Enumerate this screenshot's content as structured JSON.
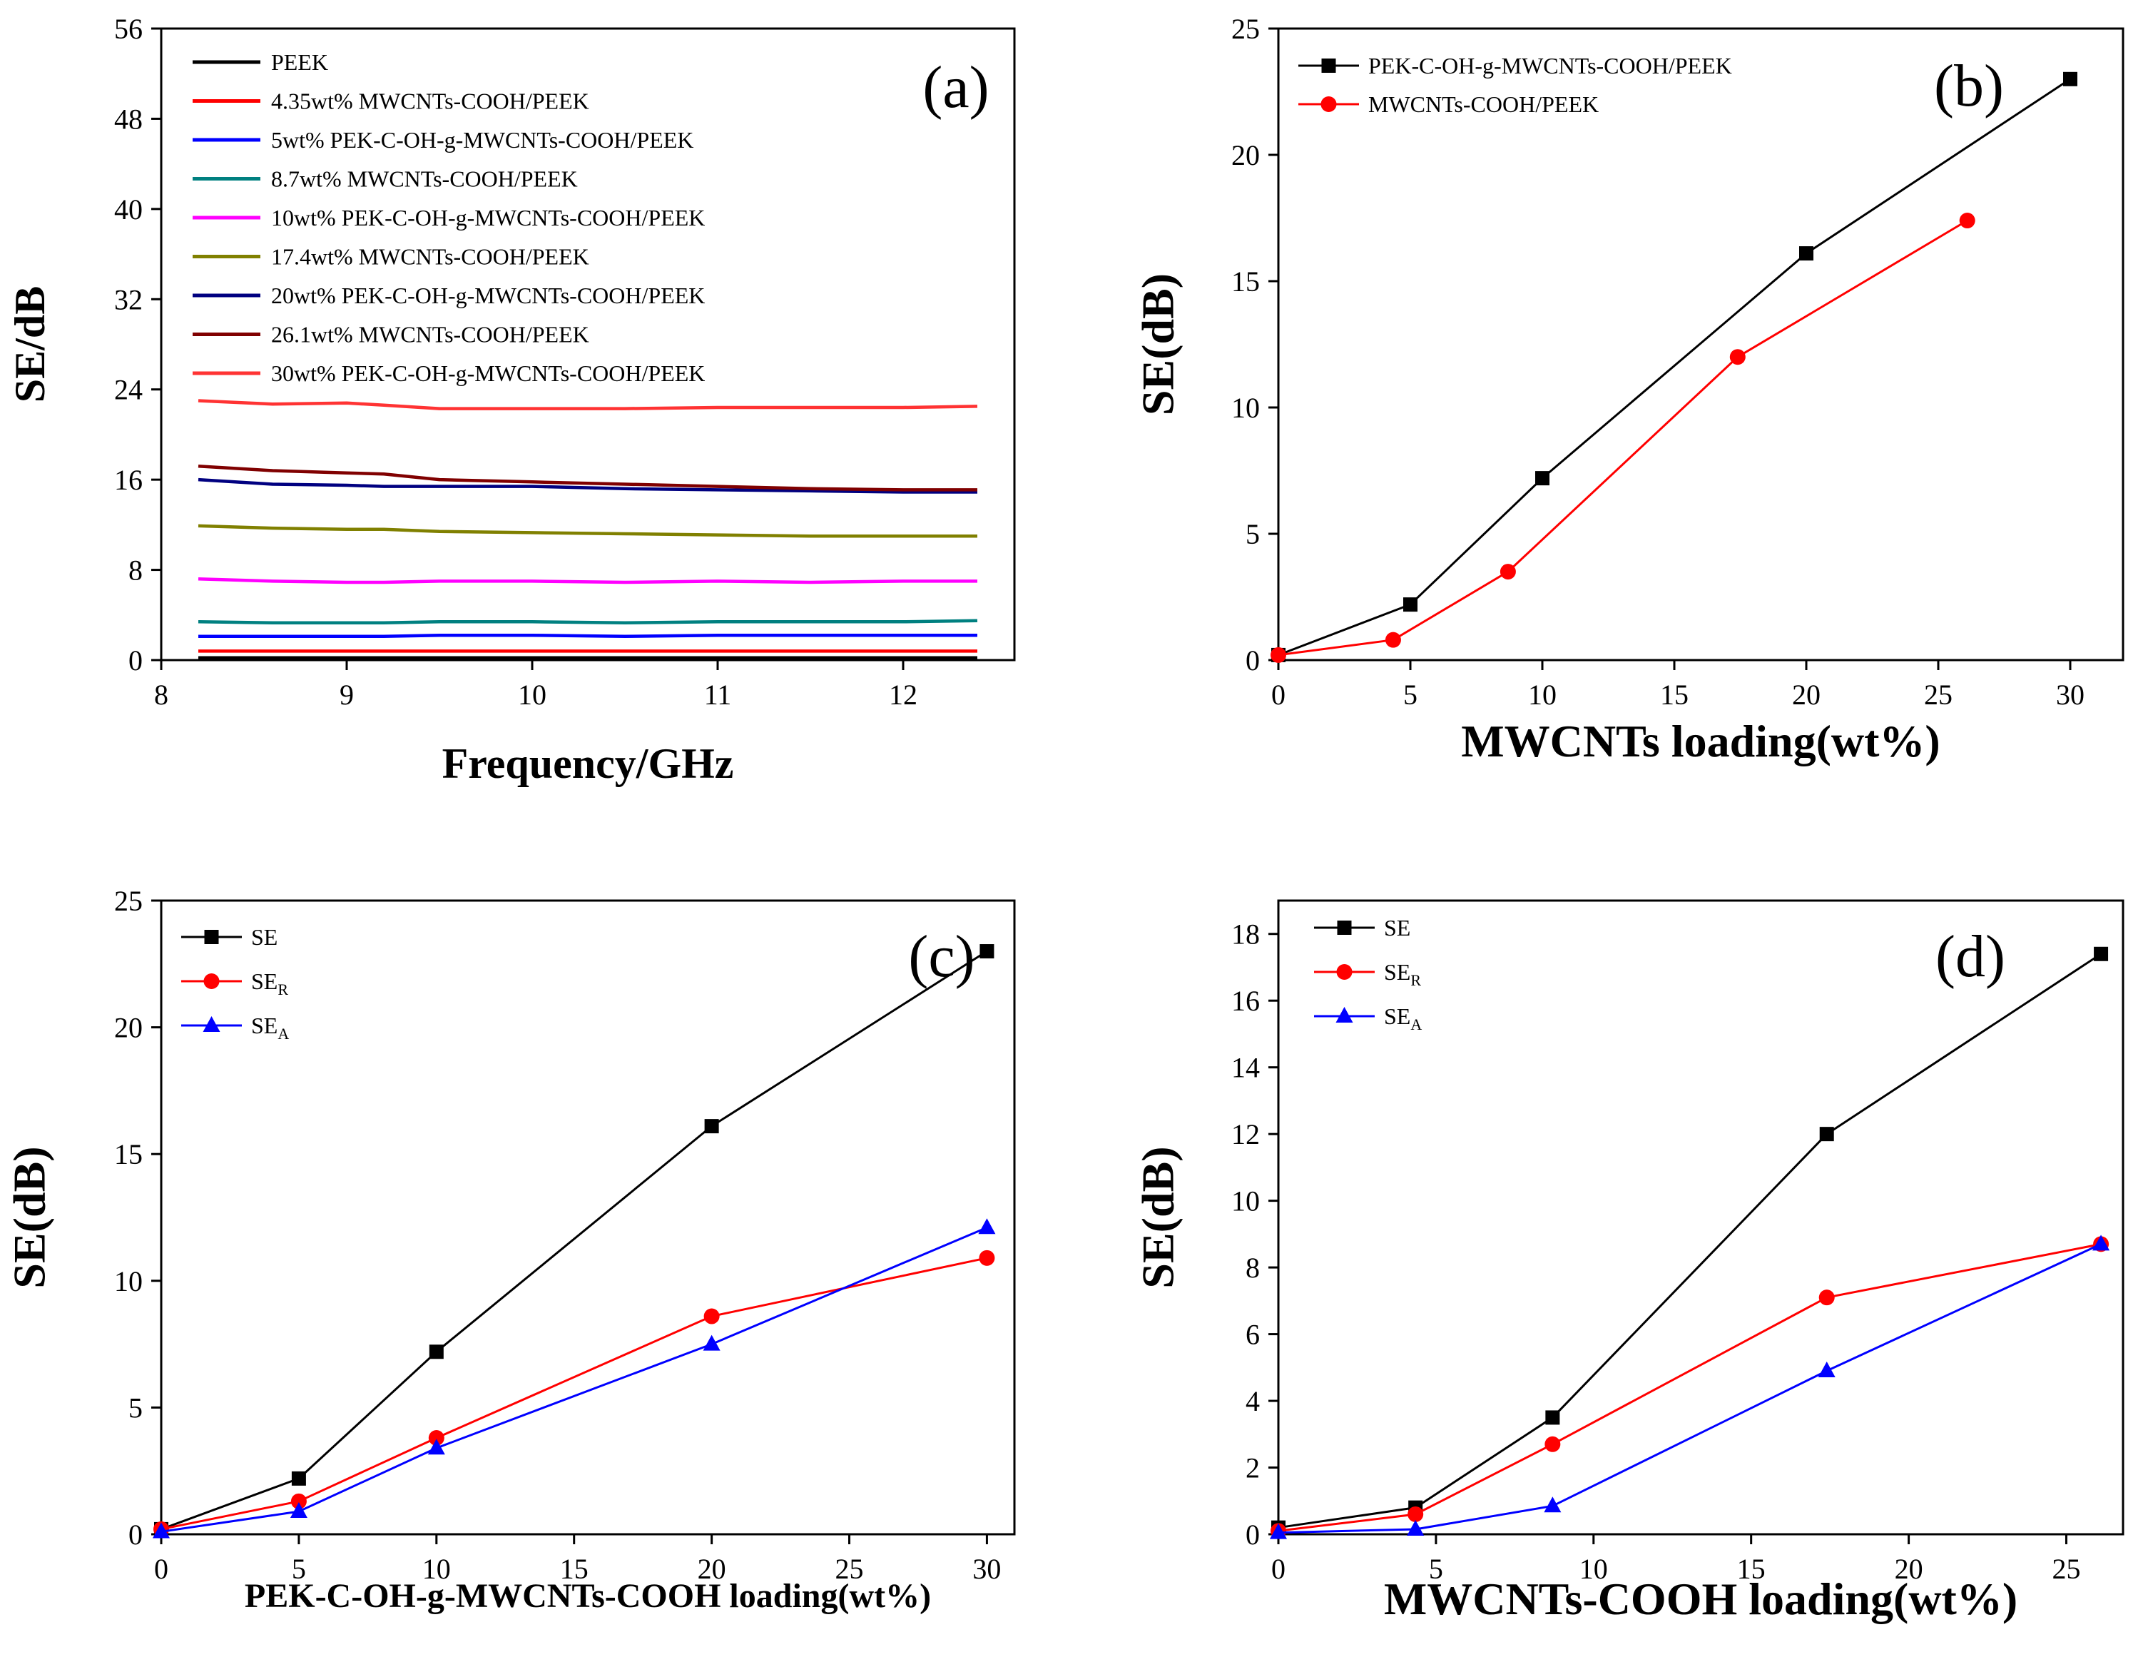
{
  "chart_data": [
    {
      "id": "a",
      "type": "line",
      "panel_label": "(a)",
      "title": "",
      "xlabel": "Frequency/GHz",
      "ylabel": "SE/dB",
      "xlim": [
        8,
        12.6
      ],
      "ylim": [
        0,
        56
      ],
      "xticks": [
        8,
        9,
        10,
        11,
        12
      ],
      "yticks": [
        0,
        8,
        16,
        24,
        32,
        40,
        48,
        56
      ],
      "legend_position": "top-left",
      "x": [
        8.2,
        8.6,
        9.0,
        9.2,
        9.5,
        10.0,
        10.5,
        11.0,
        11.5,
        12.0,
        12.4
      ],
      "series": [
        {
          "name": "PEEK",
          "color": "#000000",
          "values": [
            0.2,
            0.2,
            0.2,
            0.2,
            0.2,
            0.2,
            0.2,
            0.2,
            0.2,
            0.2,
            0.2
          ]
        },
        {
          "name": "4.35wt% MWCNTs-COOH/PEEK",
          "color": "#ff0000",
          "values": [
            0.8,
            0.8,
            0.8,
            0.8,
            0.8,
            0.8,
            0.8,
            0.8,
            0.8,
            0.8,
            0.8
          ]
        },
        {
          "name": "5wt% PEK-C-OH-g-MWCNTs-COOH/PEEK",
          "color": "#0000ff",
          "values": [
            2.1,
            2.1,
            2.1,
            2.1,
            2.2,
            2.2,
            2.1,
            2.2,
            2.2,
            2.2,
            2.2
          ]
        },
        {
          "name": "8.7wt% MWCNTs-COOH/PEEK",
          "color": "#008080",
          "values": [
            3.4,
            3.3,
            3.3,
            3.3,
            3.4,
            3.4,
            3.3,
            3.4,
            3.4,
            3.4,
            3.5
          ]
        },
        {
          "name": "10wt% PEK-C-OH-g-MWCNTs-COOH/PEEK",
          "color": "#ff00ff",
          "values": [
            7.2,
            7.0,
            6.9,
            6.9,
            7.0,
            7.0,
            6.9,
            7.0,
            6.9,
            7.0,
            7.0
          ]
        },
        {
          "name": "17.4wt% MWCNTs-COOH/PEEK",
          "color": "#808000",
          "values": [
            11.9,
            11.7,
            11.6,
            11.6,
            11.4,
            11.3,
            11.2,
            11.1,
            11.0,
            11.0,
            11.0
          ]
        },
        {
          "name": "20wt% PEK-C-OH-g-MWCNTs-COOH/PEEK",
          "color": "#000080",
          "values": [
            16.0,
            15.6,
            15.5,
            15.4,
            15.4,
            15.4,
            15.2,
            15.1,
            15.0,
            14.9,
            14.9
          ]
        },
        {
          "name": "26.1wt% MWCNTs-COOH/PEEK",
          "color": "#800000",
          "values": [
            17.2,
            16.8,
            16.6,
            16.5,
            16.0,
            15.8,
            15.6,
            15.4,
            15.2,
            15.1,
            15.1
          ]
        },
        {
          "name": "30wt% PEK-C-OH-g-MWCNTs-COOH/PEEK",
          "color": "#ff3333",
          "values": [
            23.0,
            22.7,
            22.8,
            22.6,
            22.3,
            22.3,
            22.3,
            22.4,
            22.4,
            22.4,
            22.5
          ]
        }
      ]
    },
    {
      "id": "b",
      "type": "line",
      "panel_label": "(b)",
      "title": "",
      "xlabel": "MWCNTs loading(wt%)",
      "ylabel": "SE(dB)",
      "xlim": [
        0,
        32
      ],
      "ylim": [
        0,
        25
      ],
      "xticks": [
        0,
        5,
        10,
        15,
        20,
        25,
        30
      ],
      "yticks": [
        0,
        5,
        10,
        15,
        20,
        25
      ],
      "legend_position": "top-left",
      "series": [
        {
          "name": "PEK-C-OH-g-MWCNTs-COOH/PEEK",
          "color": "#000000",
          "marker": "square",
          "x": [
            0,
            5,
            10,
            20,
            30
          ],
          "values": [
            0.2,
            2.2,
            7.2,
            16.1,
            23.0
          ]
        },
        {
          "name": "MWCNTs-COOH/PEEK",
          "color": "#ff0000",
          "marker": "circle",
          "x": [
            0,
            4.35,
            8.7,
            17.4,
            26.1
          ],
          "values": [
            0.2,
            0.8,
            3.5,
            12.0,
            17.4
          ]
        }
      ]
    },
    {
      "id": "c",
      "type": "line",
      "panel_label": "(c)",
      "title": "",
      "xlabel": "PEK-C-OH-g-MWCNTs-COOH loading(wt%)",
      "ylabel": "SE(dB)",
      "xlim": [
        0,
        31
      ],
      "ylim": [
        0,
        25
      ],
      "xticks": [
        0,
        5,
        10,
        15,
        20,
        25,
        30
      ],
      "yticks": [
        0,
        5,
        10,
        15,
        20,
        25
      ],
      "legend_position": "top-left",
      "series": [
        {
          "name": "SE",
          "sub": "",
          "color": "#000000",
          "marker": "square",
          "x": [
            0,
            5,
            10,
            20,
            30
          ],
          "values": [
            0.2,
            2.2,
            7.2,
            16.1,
            23.0
          ]
        },
        {
          "name": "SE",
          "sub": "R",
          "color": "#ff0000",
          "marker": "circle",
          "x": [
            0,
            5,
            10,
            20,
            30
          ],
          "values": [
            0.2,
            1.3,
            3.8,
            8.6,
            10.9
          ]
        },
        {
          "name": "SE",
          "sub": "A",
          "color": "#0000ff",
          "marker": "triangle",
          "x": [
            0,
            5,
            10,
            20,
            30
          ],
          "values": [
            0.1,
            0.9,
            3.4,
            7.5,
            12.1
          ]
        }
      ]
    },
    {
      "id": "d",
      "type": "line",
      "panel_label": "(d)",
      "title": "",
      "xlabel": "MWCNTs-COOH loading(wt%)",
      "ylabel": "SE(dB)",
      "xlim": [
        0,
        26.8
      ],
      "ylim": [
        0,
        19
      ],
      "xticks": [
        0,
        5,
        10,
        15,
        20,
        25
      ],
      "yticks": [
        0,
        2,
        4,
        6,
        8,
        10,
        12,
        14,
        16,
        18
      ],
      "legend_position": "top-left",
      "series": [
        {
          "name": "SE",
          "sub": "",
          "color": "#000000",
          "marker": "square",
          "x": [
            0,
            4.35,
            8.7,
            17.4,
            26.1
          ],
          "values": [
            0.2,
            0.8,
            3.5,
            12.0,
            17.4
          ]
        },
        {
          "name": "SE",
          "sub": "R",
          "color": "#ff0000",
          "marker": "circle",
          "x": [
            0,
            4.35,
            8.7,
            17.4,
            26.1
          ],
          "values": [
            0.1,
            0.6,
            2.7,
            7.1,
            8.7
          ]
        },
        {
          "name": "SE",
          "sub": "A",
          "color": "#0000ff",
          "marker": "triangle",
          "x": [
            0,
            4.35,
            8.7,
            17.4,
            26.1
          ],
          "values": [
            0.05,
            0.15,
            0.85,
            4.9,
            8.7
          ]
        }
      ]
    }
  ]
}
